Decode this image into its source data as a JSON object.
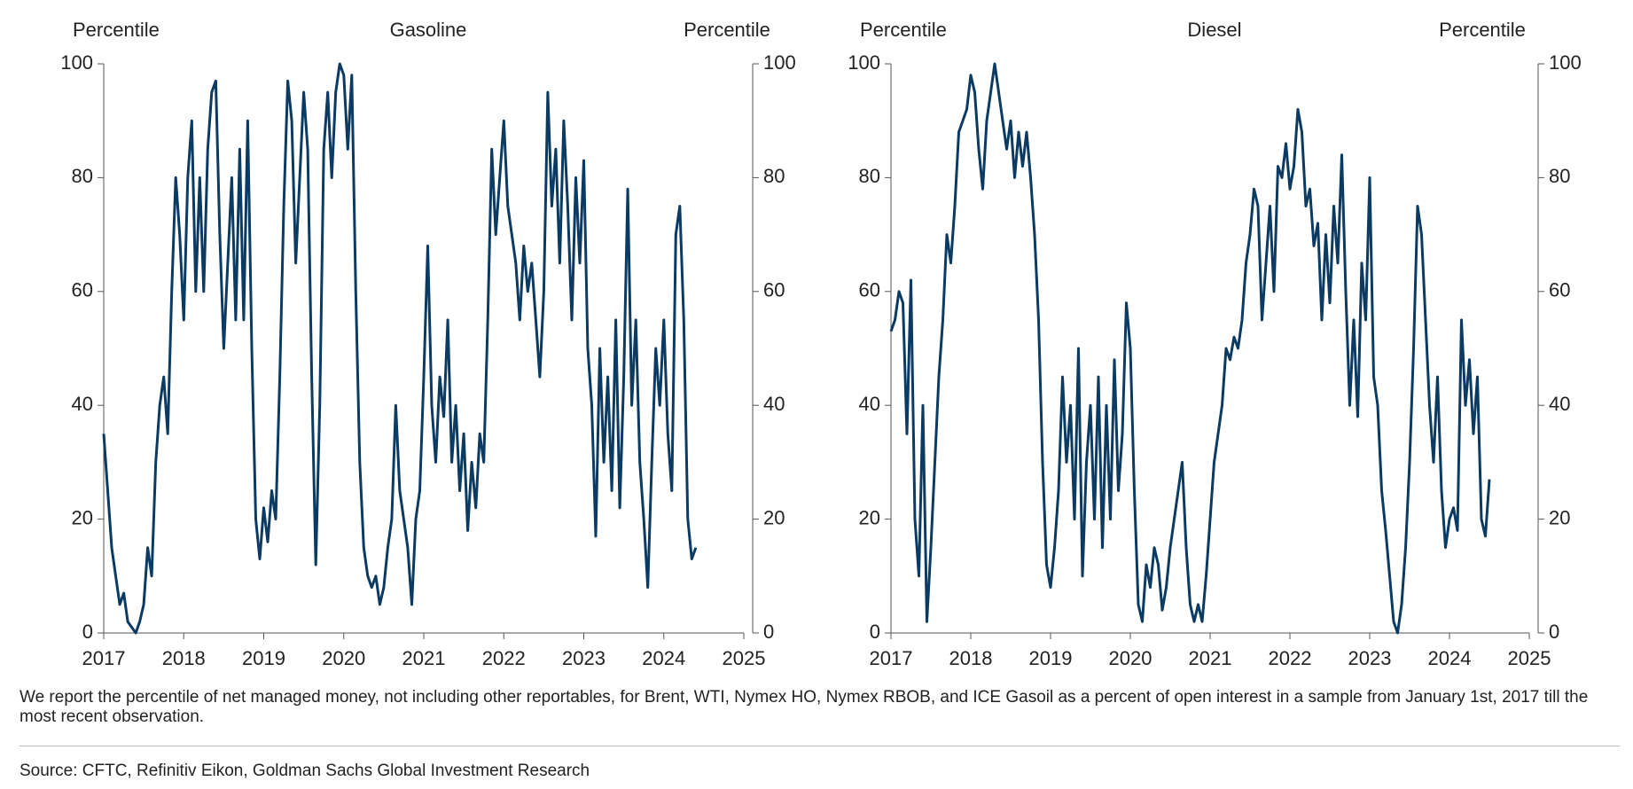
{
  "chart_data": [
    {
      "type": "line",
      "title": "Gasoline",
      "y_label": "Percentile",
      "y2_label": "Percentile",
      "color": "#0b3a63",
      "xlim": [
        2017,
        2025
      ],
      "xticks": [
        2017,
        2018,
        2019,
        2020,
        2021,
        2022,
        2023,
        2024,
        2025
      ],
      "ylim": [
        0,
        100
      ],
      "yticks": [
        0,
        20,
        40,
        60,
        80,
        100
      ],
      "y2lim": [
        0,
        100
      ],
      "y2ticks": [
        0,
        20,
        40,
        60,
        80,
        100
      ],
      "x": [
        2017,
        2017.05,
        2017.1,
        2017.15,
        2017.2,
        2017.25,
        2017.3,
        2017.35,
        2017.4,
        2017.45,
        2017.5,
        2017.55,
        2017.6,
        2017.65,
        2017.7,
        2017.75,
        2017.8,
        2017.85,
        2017.9,
        2017.95,
        2018,
        2018.05,
        2018.1,
        2018.15,
        2018.2,
        2018.25,
        2018.3,
        2018.35,
        2018.4,
        2018.45,
        2018.5,
        2018.55,
        2018.6,
        2018.65,
        2018.7,
        2018.75,
        2018.8,
        2018.85,
        2018.9,
        2018.95,
        2019,
        2019.05,
        2019.1,
        2019.15,
        2019.2,
        2019.25,
        2019.3,
        2019.35,
        2019.4,
        2019.45,
        2019.5,
        2019.55,
        2019.6,
        2019.65,
        2019.7,
        2019.75,
        2019.8,
        2019.85,
        2019.9,
        2019.95,
        2020,
        2020.05,
        2020.1,
        2020.15,
        2020.2,
        2020.25,
        2020.3,
        2020.35,
        2020.4,
        2020.45,
        2020.5,
        2020.55,
        2020.6,
        2020.65,
        2020.7,
        2020.75,
        2020.8,
        2020.85,
        2020.9,
        2020.95,
        2021,
        2021.05,
        2021.1,
        2021.15,
        2021.2,
        2021.25,
        2021.3,
        2021.35,
        2021.4,
        2021.45,
        2021.5,
        2021.55,
        2021.6,
        2021.65,
        2021.7,
        2021.75,
        2021.8,
        2021.85,
        2021.9,
        2021.95,
        2022,
        2022.05,
        2022.1,
        2022.15,
        2022.2,
        2022.25,
        2022.3,
        2022.35,
        2022.4,
        2022.45,
        2022.5,
        2022.55,
        2022.6,
        2022.65,
        2022.7,
        2022.75,
        2022.8,
        2022.85,
        2022.9,
        2022.95,
        2023,
        2023.05,
        2023.1,
        2023.15,
        2023.2,
        2023.25,
        2023.3,
        2023.35,
        2023.4,
        2023.45,
        2023.5,
        2023.55,
        2023.6,
        2023.65,
        2023.7,
        2023.75,
        2023.8,
        2023.85,
        2023.9,
        2023.95,
        2024,
        2024.05,
        2024.1,
        2024.15,
        2024.2,
        2024.25,
        2024.3,
        2024.35,
        2024.4
      ],
      "values": [
        35,
        25,
        15,
        10,
        5,
        7,
        2,
        1,
        0,
        2,
        5,
        15,
        10,
        30,
        40,
        45,
        35,
        60,
        80,
        70,
        55,
        80,
        90,
        60,
        80,
        60,
        85,
        95,
        97,
        70,
        50,
        65,
        80,
        55,
        85,
        55,
        90,
        50,
        20,
        13,
        22,
        16,
        25,
        20,
        45,
        75,
        97,
        90,
        65,
        80,
        95,
        85,
        45,
        12,
        40,
        85,
        95,
        80,
        95,
        100,
        98,
        85,
        98,
        60,
        30,
        15,
        10,
        8,
        10,
        5,
        8,
        15,
        20,
        40,
        25,
        20,
        15,
        5,
        20,
        25,
        45,
        68,
        40,
        30,
        45,
        38,
        55,
        30,
        40,
        25,
        35,
        18,
        30,
        22,
        35,
        30,
        55,
        85,
        70,
        80,
        90,
        75,
        70,
        65,
        55,
        68,
        60,
        65,
        55,
        45,
        60,
        95,
        75,
        85,
        65,
        90,
        75,
        55,
        80,
        65,
        83,
        50,
        40,
        17,
        50,
        30,
        45,
        25,
        55,
        22,
        45,
        78,
        40,
        55,
        30,
        20,
        8,
        30,
        50,
        40,
        55,
        35,
        25,
        70,
        75,
        55,
        20,
        13,
        15
      ]
    },
    {
      "type": "line",
      "title": "Diesel",
      "y_label": "Percentile",
      "y2_label": "Percentile",
      "color": "#0b3a63",
      "xlim": [
        2017,
        2025
      ],
      "xticks": [
        2017,
        2018,
        2019,
        2020,
        2021,
        2022,
        2023,
        2024,
        2025
      ],
      "ylim": [
        0,
        100
      ],
      "yticks": [
        0,
        20,
        40,
        60,
        80,
        100
      ],
      "y2lim": [
        0,
        100
      ],
      "y2ticks": [
        0,
        20,
        40,
        60,
        80,
        100
      ],
      "x": [
        2017,
        2017.05,
        2017.1,
        2017.15,
        2017.2,
        2017.25,
        2017.3,
        2017.35,
        2017.4,
        2017.45,
        2017.5,
        2017.55,
        2017.6,
        2017.65,
        2017.7,
        2017.75,
        2017.8,
        2017.85,
        2017.9,
        2017.95,
        2018,
        2018.05,
        2018.1,
        2018.15,
        2018.2,
        2018.25,
        2018.3,
        2018.35,
        2018.4,
        2018.45,
        2018.5,
        2018.55,
        2018.6,
        2018.65,
        2018.7,
        2018.75,
        2018.8,
        2018.85,
        2018.9,
        2018.95,
        2019,
        2019.05,
        2019.1,
        2019.15,
        2019.2,
        2019.25,
        2019.3,
        2019.35,
        2019.4,
        2019.45,
        2019.5,
        2019.55,
        2019.6,
        2019.65,
        2019.7,
        2019.75,
        2019.8,
        2019.85,
        2019.9,
        2019.95,
        2020,
        2020.05,
        2020.1,
        2020.15,
        2020.2,
        2020.25,
        2020.3,
        2020.35,
        2020.4,
        2020.45,
        2020.5,
        2020.55,
        2020.6,
        2020.65,
        2020.7,
        2020.75,
        2020.8,
        2020.85,
        2020.9,
        2020.95,
        2021,
        2021.05,
        2021.1,
        2021.15,
        2021.2,
        2021.25,
        2021.3,
        2021.35,
        2021.4,
        2021.45,
        2021.5,
        2021.55,
        2021.6,
        2021.65,
        2021.7,
        2021.75,
        2021.8,
        2021.85,
        2021.9,
        2021.95,
        2022,
        2022.05,
        2022.1,
        2022.15,
        2022.2,
        2022.25,
        2022.3,
        2022.35,
        2022.4,
        2022.45,
        2022.5,
        2022.55,
        2022.6,
        2022.65,
        2022.7,
        2022.75,
        2022.8,
        2022.85,
        2022.9,
        2022.95,
        2023,
        2023.05,
        2023.1,
        2023.15,
        2023.2,
        2023.25,
        2023.3,
        2023.35,
        2023.4,
        2023.45,
        2023.5,
        2023.55,
        2023.6,
        2023.65,
        2023.7,
        2023.75,
        2023.8,
        2023.85,
        2023.9,
        2023.95,
        2024,
        2024.05,
        2024.1,
        2024.15,
        2024.2,
        2024.25,
        2024.3,
        2024.35,
        2024.4,
        2024.45,
        2024.5
      ],
      "values": [
        53,
        55,
        60,
        58,
        35,
        62,
        20,
        10,
        40,
        2,
        15,
        30,
        45,
        55,
        70,
        65,
        75,
        88,
        90,
        92,
        98,
        95,
        85,
        78,
        90,
        95,
        100,
        95,
        90,
        85,
        90,
        80,
        88,
        82,
        88,
        80,
        70,
        55,
        30,
        12,
        8,
        15,
        25,
        45,
        30,
        40,
        20,
        50,
        10,
        30,
        40,
        20,
        45,
        15,
        40,
        20,
        48,
        25,
        35,
        58,
        50,
        25,
        5,
        2,
        12,
        8,
        15,
        12,
        4,
        8,
        15,
        20,
        25,
        30,
        15,
        5,
        2,
        5,
        2,
        10,
        20,
        30,
        35,
        40,
        50,
        48,
        52,
        50,
        55,
        65,
        70,
        78,
        75,
        55,
        65,
        75,
        60,
        82,
        80,
        86,
        78,
        82,
        92,
        88,
        75,
        78,
        68,
        72,
        55,
        70,
        58,
        75,
        65,
        84,
        60,
        40,
        55,
        38,
        65,
        55,
        80,
        45,
        40,
        25,
        18,
        10,
        2,
        0,
        5,
        15,
        30,
        50,
        75,
        70,
        55,
        40,
        30,
        45,
        25,
        15,
        20,
        22,
        18,
        55,
        40,
        48,
        35,
        45,
        20,
        17,
        27
      ]
    }
  ],
  "note": "We report the percentile of net managed money, not including other reportables, for Brent, WTI, Nymex HO, Nymex RBOB, and ICE Gasoil as a percent of open interest in a sample from January 1st, 2017 till the most recent observation.",
  "source": "Source: CFTC, Refinitiv Eikon, Goldman Sachs Global Investment Research"
}
